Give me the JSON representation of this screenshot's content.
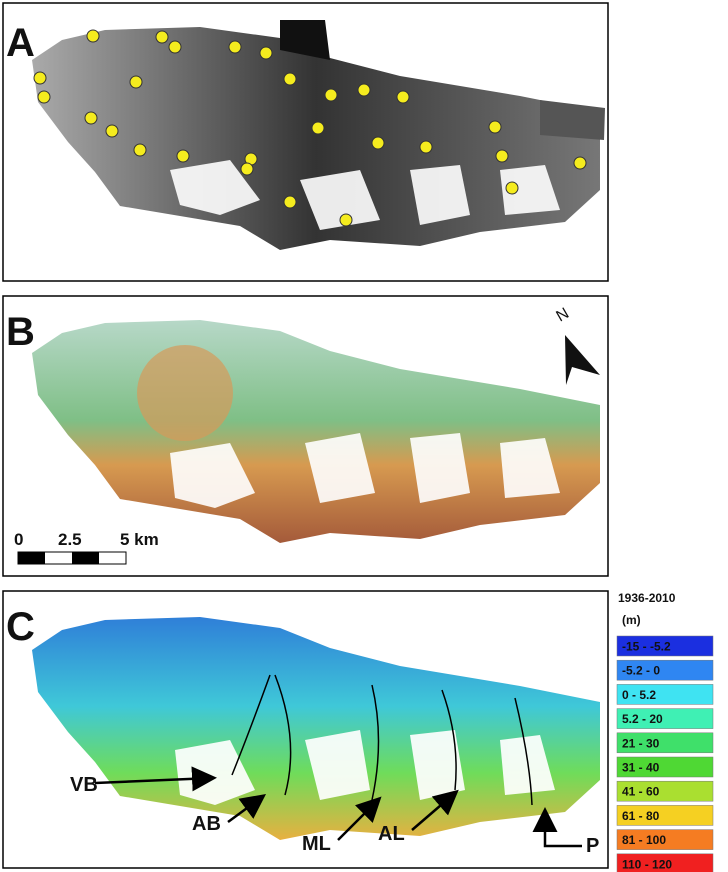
{
  "panels": [
    {
      "label": "A"
    },
    {
      "label": "B",
      "scale_bar": [
        "0",
        "2.5",
        "5 km"
      ],
      "north_arrow": "N"
    },
    {
      "label": "C",
      "glaciers": [
        "VB",
        "AB",
        "ML",
        "AL",
        "P"
      ]
    }
  ],
  "legend": {
    "title": "1936-2010",
    "unit": "(m)",
    "items": [
      {
        "label": "-15 - -5.2",
        "color": "#1b2fe0"
      },
      {
        "label": "-5.2 - 0",
        "color": "#2f86f2"
      },
      {
        "label": "0 - 5.2",
        "color": "#3fe3f2"
      },
      {
        "label": "5.2 - 20",
        "color": "#3ff0b4"
      },
      {
        "label": "21 - 30",
        "color": "#3fe06a"
      },
      {
        "label": "31 - 40",
        "color": "#4fd834"
      },
      {
        "label": "41 - 60",
        "color": "#aadf30"
      },
      {
        "label": "61 - 80",
        "color": "#f5d022"
      },
      {
        "label": "81 - 100",
        "color": "#f57c22"
      },
      {
        "label": "110 - 120",
        "color": "#f02020"
      }
    ]
  }
}
